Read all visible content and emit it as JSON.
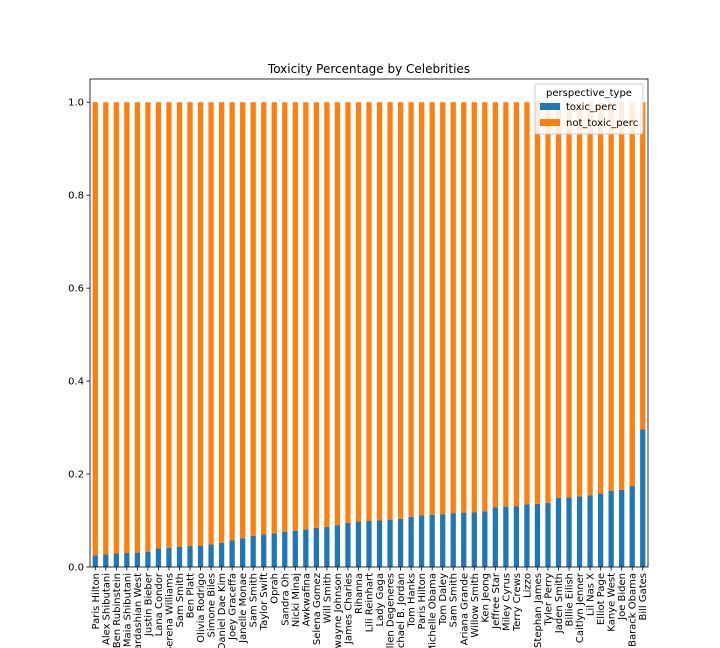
{
  "colors": {
    "toxic": "#1f77b4",
    "not_toxic": "#ff7f0e"
  },
  "chart_data": {
    "type": "bar",
    "stacked": true,
    "title": "Toxicity Percentage by Celebrities",
    "xlabel": "",
    "ylabel": "",
    "ylim": [
      0,
      1.05
    ],
    "yticks": [
      "0.0",
      "0.2",
      "0.4",
      "0.6",
      "0.8",
      "1.0"
    ],
    "ytick_values": [
      0,
      0.2,
      0.4,
      0.6,
      0.8,
      1.0
    ],
    "legend": {
      "title": "perspective_type",
      "placement": "top-right"
    },
    "categories": [
      "Paris Hilton",
      "Alex Shibutani",
      "Ben Rubinstein",
      "Maia Shibutani",
      "Kardashian West",
      "Justin Bieber",
      "Lana Condor",
      "Serena Williams",
      "Sam Smith",
      "Ben Platt",
      "Olivia Rodrigo",
      "Simone Biles",
      "Daniel Dae Kim",
      "Joey Graceffa",
      "Janelle Monae",
      "Sam Smith",
      "Taylor Swift",
      "Oprah",
      "Sandra Oh",
      "Nicki Minaj",
      "Awkwafina",
      "Selena Gomez",
      "Will Smith",
      "Dwayne Johnson",
      "James Charles",
      "Rihanna",
      "Lili Reinhart",
      "Lady Gaga",
      "Ellen Degeneres",
      "Michael B. Jordan",
      "Tom Hanks",
      "Paris Hilton",
      "Michelle Obama",
      "Tom Daley",
      "Sam Smith",
      "Ariana Grande",
      "Willow Smith",
      "Ken Jeong",
      "Jeffree Star",
      "Miley Cyrus",
      "Terry Crews",
      "Lizzo",
      "Stephan James",
      "Tyler Perry",
      "Jaden Smith",
      "Billie Eilish",
      "Caitlyn Jenner",
      "Lil Nas X",
      "Elliot Page",
      "Kanye West",
      "Joe Biden",
      "Barack Obama",
      "Bill Gates"
    ],
    "series": [
      {
        "name": "toxic_perc",
        "values": [
          0.025,
          0.027,
          0.029,
          0.03,
          0.031,
          0.033,
          0.04,
          0.041,
          0.043,
          0.045,
          0.046,
          0.049,
          0.052,
          0.057,
          0.062,
          0.067,
          0.07,
          0.072,
          0.076,
          0.078,
          0.081,
          0.084,
          0.086,
          0.09,
          0.095,
          0.098,
          0.099,
          0.1,
          0.102,
          0.104,
          0.108,
          0.111,
          0.112,
          0.113,
          0.116,
          0.117,
          0.118,
          0.12,
          0.128,
          0.13,
          0.131,
          0.135,
          0.136,
          0.138,
          0.149,
          0.15,
          0.152,
          0.154,
          0.158,
          0.164,
          0.166,
          0.174,
          0.296
        ]
      },
      {
        "name": "not_toxic_perc",
        "values": [
          0.975,
          0.973,
          0.971,
          0.97,
          0.969,
          0.967,
          0.96,
          0.959,
          0.957,
          0.955,
          0.954,
          0.951,
          0.948,
          0.943,
          0.938,
          0.933,
          0.93,
          0.928,
          0.924,
          0.922,
          0.919,
          0.916,
          0.914,
          0.91,
          0.905,
          0.902,
          0.901,
          0.9,
          0.898,
          0.896,
          0.892,
          0.889,
          0.888,
          0.887,
          0.884,
          0.883,
          0.882,
          0.88,
          0.872,
          0.87,
          0.869,
          0.865,
          0.864,
          0.862,
          0.851,
          0.85,
          0.848,
          0.846,
          0.842,
          0.836,
          0.834,
          0.826,
          0.704
        ]
      }
    ]
  }
}
